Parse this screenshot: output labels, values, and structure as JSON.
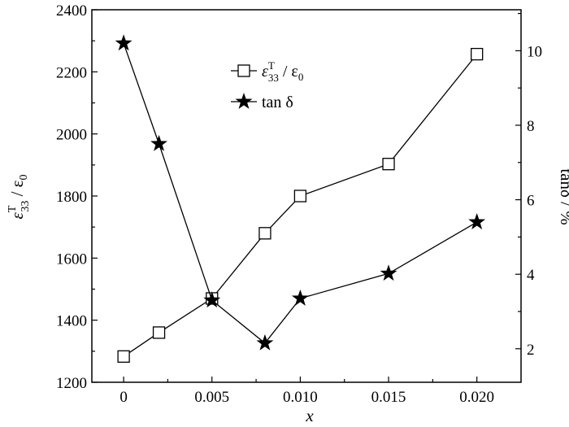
{
  "chart_data": {
    "type": "line",
    "title": "",
    "x_axis": {
      "label": "x",
      "ticks": [
        0,
        0.005,
        0.01,
        0.015,
        0.02
      ],
      "tick_labels": [
        "0",
        "0.005",
        "0.010",
        "0.015",
        "0.020"
      ],
      "range": [
        -0.0018,
        0.0225
      ]
    },
    "y_axis_left": {
      "label_base": "ε",
      "label_sup": "T",
      "label_sub": "33",
      "label_rest": " / ε",
      "label_rest_sub": "0",
      "ticks": [
        1200,
        1400,
        1600,
        1800,
        2000,
        2200,
        2400
      ],
      "range": [
        1200,
        2400
      ]
    },
    "y_axis_right": {
      "label": "tanδ / %",
      "ticks": [
        2,
        4,
        6,
        8,
        10
      ],
      "range": [
        1.1,
        11.1
      ]
    },
    "series": [
      {
        "name": "ε33T / ε0",
        "legend_text": "ε",
        "legend_sup": "T",
        "legend_sub": "33",
        "legend_rest": " / ε",
        "legend_rest_sub": "0",
        "marker": "square",
        "axis": "left",
        "x": [
          0,
          0.002,
          0.005,
          0.008,
          0.01,
          0.015,
          0.02
        ],
        "values": [
          1283,
          1360,
          1470,
          1680,
          1800,
          1903,
          2257
        ]
      },
      {
        "name": "tan δ",
        "legend_text": "tan δ",
        "marker": "star",
        "axis": "right",
        "x": [
          0,
          0.002,
          0.005,
          0.008,
          0.01,
          0.015,
          0.02
        ],
        "values": [
          10.2,
          7.5,
          3.3,
          2.15,
          3.35,
          4.02,
          5.4
        ]
      }
    ],
    "legend_position": "top-center",
    "grid": false
  }
}
